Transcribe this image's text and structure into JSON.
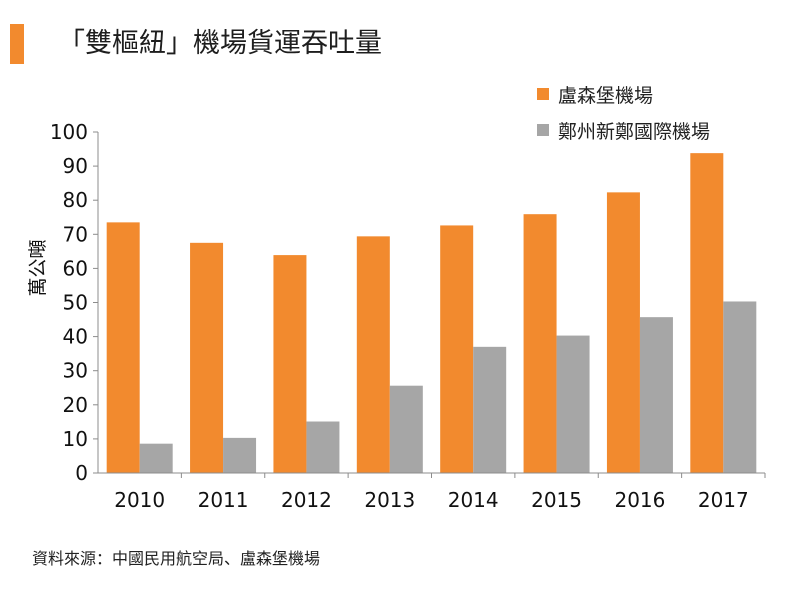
{
  "header": {
    "title": "「雙樞紐」機場貨運吞吐量"
  },
  "source": {
    "text": "資料來源：中國民用航空局、盧森堡機場"
  },
  "colors": {
    "accent": "#f28a2e",
    "series_1": "#f28a2e",
    "series_2": "#a6a6a6",
    "axis": "#8c8c8c"
  },
  "chart_data": {
    "type": "bar",
    "title": "「雙樞紐」機場貨運吞吐量",
    "xlabel": "",
    "ylabel": "萬公噸",
    "ylim": [
      0,
      100
    ],
    "yticks": [
      0,
      10,
      20,
      30,
      40,
      50,
      60,
      70,
      80,
      90,
      100
    ],
    "grid": false,
    "legend_position": "top-right",
    "categories": [
      "2010",
      "2011",
      "2012",
      "2013",
      "2014",
      "2015",
      "2016",
      "2017"
    ],
    "series": [
      {
        "name": "盧森堡機場",
        "color": "#f28a2e",
        "values": [
          73.5,
          67.5,
          63.9,
          69.4,
          72.6,
          75.9,
          82.3,
          93.8
        ]
      },
      {
        "name": "鄭州新鄭國際機場",
        "color": "#a6a6a6",
        "values": [
          8.6,
          10.3,
          15.1,
          25.6,
          37.0,
          40.3,
          45.7,
          50.3
        ]
      }
    ]
  }
}
